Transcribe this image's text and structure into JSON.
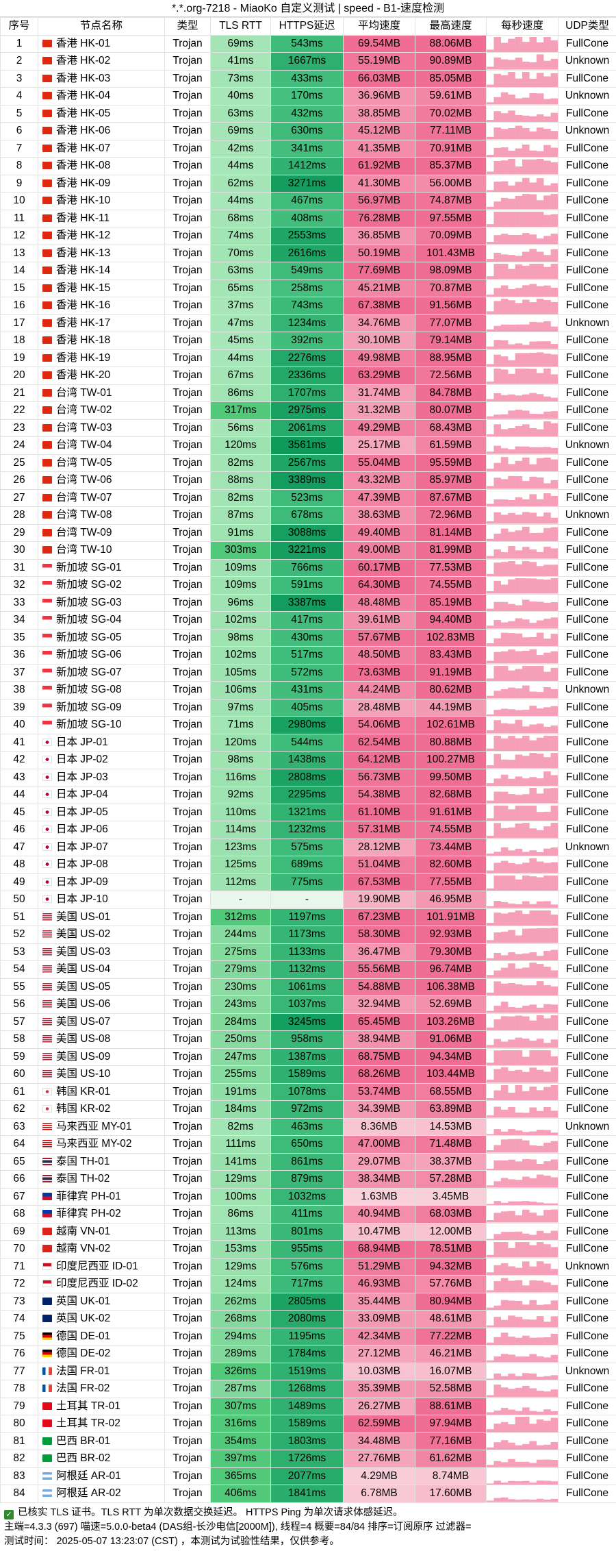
{
  "title": "*.*.org-7218 - MiaoKo 自定义测试 | speed - B1-速度检测",
  "headers": [
    "序号",
    "节点名称",
    "类型",
    "TLS RTT",
    "HTTPS延迟",
    "平均速度",
    "最高速度",
    "每秒速度",
    "UDP类型"
  ],
  "rows": [
    [
      "1",
      "香港 HK-01",
      "Trojan",
      "69ms",
      "543ms",
      "69.54MB",
      "88.06MB",
      "FullCone"
    ],
    [
      "2",
      "香港 HK-02",
      "Trojan",
      "41ms",
      "1667ms",
      "55.19MB",
      "90.89MB",
      "Unknown"
    ],
    [
      "3",
      "香港 HK-03",
      "Trojan",
      "73ms",
      "433ms",
      "66.03MB",
      "85.05MB",
      "FullCone"
    ],
    [
      "4",
      "香港 HK-04",
      "Trojan",
      "40ms",
      "170ms",
      "36.96MB",
      "59.61MB",
      "Unknown"
    ],
    [
      "5",
      "香港 HK-05",
      "Trojan",
      "63ms",
      "432ms",
      "38.85MB",
      "70.02MB",
      "FullCone"
    ],
    [
      "6",
      "香港 HK-06",
      "Trojan",
      "69ms",
      "630ms",
      "45.12MB",
      "77.11MB",
      "Unknown"
    ],
    [
      "7",
      "香港 HK-07",
      "Trojan",
      "42ms",
      "341ms",
      "41.35MB",
      "70.91MB",
      "FullCone"
    ],
    [
      "8",
      "香港 HK-08",
      "Trojan",
      "44ms",
      "1412ms",
      "61.92MB",
      "85.37MB",
      "FullCone"
    ],
    [
      "9",
      "香港 HK-09",
      "Trojan",
      "62ms",
      "3271ms",
      "41.30MB",
      "56.00MB",
      "FullCone"
    ],
    [
      "10",
      "香港 HK-10",
      "Trojan",
      "44ms",
      "467ms",
      "56.97MB",
      "74.87MB",
      "FullCone"
    ],
    [
      "11",
      "香港 HK-11",
      "Trojan",
      "68ms",
      "408ms",
      "76.28MB",
      "97.55MB",
      "FullCone"
    ],
    [
      "12",
      "香港 HK-12",
      "Trojan",
      "74ms",
      "2553ms",
      "36.85MB",
      "70.09MB",
      "FullCone"
    ],
    [
      "13",
      "香港 HK-13",
      "Trojan",
      "70ms",
      "2616ms",
      "50.19MB",
      "101.43MB",
      "FullCone"
    ],
    [
      "14",
      "香港 HK-14",
      "Trojan",
      "63ms",
      "549ms",
      "77.69MB",
      "98.09MB",
      "FullCone"
    ],
    [
      "15",
      "香港 HK-15",
      "Trojan",
      "65ms",
      "258ms",
      "45.21MB",
      "70.87MB",
      "FullCone"
    ],
    [
      "16",
      "香港 HK-16",
      "Trojan",
      "37ms",
      "743ms",
      "67.38MB",
      "91.56MB",
      "FullCone"
    ],
    [
      "17",
      "香港 HK-17",
      "Trojan",
      "47ms",
      "1234ms",
      "34.76MB",
      "77.07MB",
      "Unknown"
    ],
    [
      "18",
      "香港 HK-18",
      "Trojan",
      "45ms",
      "392ms",
      "30.10MB",
      "79.14MB",
      "FullCone"
    ],
    [
      "19",
      "香港 HK-19",
      "Trojan",
      "44ms",
      "2276ms",
      "49.98MB",
      "88.95MB",
      "FullCone"
    ],
    [
      "20",
      "香港 HK-20",
      "Trojan",
      "67ms",
      "2336ms",
      "63.29MB",
      "72.56MB",
      "FullCone"
    ],
    [
      "21",
      "台湾 TW-01",
      "Trojan",
      "86ms",
      "1707ms",
      "31.74MB",
      "84.78MB",
      "FullCone"
    ],
    [
      "22",
      "台湾 TW-02",
      "Trojan",
      "317ms",
      "2975ms",
      "31.32MB",
      "80.07MB",
      "FullCone"
    ],
    [
      "23",
      "台湾 TW-03",
      "Trojan",
      "56ms",
      "2061ms",
      "49.29MB",
      "68.43MB",
      "FullCone"
    ],
    [
      "24",
      "台湾 TW-04",
      "Trojan",
      "120ms",
      "3561ms",
      "25.17MB",
      "61.59MB",
      "Unknown"
    ],
    [
      "25",
      "台湾 TW-05",
      "Trojan",
      "82ms",
      "2567ms",
      "55.04MB",
      "95.59MB",
      "FullCone"
    ],
    [
      "26",
      "台湾 TW-06",
      "Trojan",
      "88ms",
      "3389ms",
      "43.32MB",
      "85.97MB",
      "FullCone"
    ],
    [
      "27",
      "台湾 TW-07",
      "Trojan",
      "82ms",
      "523ms",
      "47.39MB",
      "87.67MB",
      "FullCone"
    ],
    [
      "28",
      "台湾 TW-08",
      "Trojan",
      "87ms",
      "678ms",
      "38.63MB",
      "72.96MB",
      "Unknown"
    ],
    [
      "29",
      "台湾 TW-09",
      "Trojan",
      "91ms",
      "3088ms",
      "49.40MB",
      "81.14MB",
      "FullCone"
    ],
    [
      "30",
      "台湾 TW-10",
      "Trojan",
      "303ms",
      "3221ms",
      "49.00MB",
      "81.99MB",
      "FullCone"
    ],
    [
      "31",
      "新加坡 SG-01",
      "Trojan",
      "109ms",
      "766ms",
      "60.17MB",
      "77.53MB",
      "FullCone"
    ],
    [
      "32",
      "新加坡 SG-02",
      "Trojan",
      "109ms",
      "591ms",
      "64.30MB",
      "74.55MB",
      "FullCone"
    ],
    [
      "33",
      "新加坡 SG-03",
      "Trojan",
      "96ms",
      "3387ms",
      "48.48MB",
      "85.19MB",
      "FullCone"
    ],
    [
      "34",
      "新加坡 SG-04",
      "Trojan",
      "102ms",
      "417ms",
      "39.61MB",
      "94.40MB",
      "FullCone"
    ],
    [
      "35",
      "新加坡 SG-05",
      "Trojan",
      "98ms",
      "430ms",
      "57.67MB",
      "102.83MB",
      "FullCone"
    ],
    [
      "36",
      "新加坡 SG-06",
      "Trojan",
      "102ms",
      "517ms",
      "48.50MB",
      "83.43MB",
      "FullCone"
    ],
    [
      "37",
      "新加坡 SG-07",
      "Trojan",
      "105ms",
      "572ms",
      "73.63MB",
      "91.19MB",
      "FullCone"
    ],
    [
      "38",
      "新加坡 SG-08",
      "Trojan",
      "106ms",
      "431ms",
      "44.24MB",
      "80.62MB",
      "Unknown"
    ],
    [
      "39",
      "新加坡 SG-09",
      "Trojan",
      "97ms",
      "405ms",
      "28.48MB",
      "44.19MB",
      "FullCone"
    ],
    [
      "40",
      "新加坡 SG-10",
      "Trojan",
      "71ms",
      "2980ms",
      "54.06MB",
      "102.61MB",
      "FullCone"
    ],
    [
      "41",
      "日本 JP-01",
      "Trojan",
      "120ms",
      "544ms",
      "62.54MB",
      "80.88MB",
      "FullCone"
    ],
    [
      "42",
      "日本 JP-02",
      "Trojan",
      "98ms",
      "1438ms",
      "64.12MB",
      "100.27MB",
      "FullCone"
    ],
    [
      "43",
      "日本 JP-03",
      "Trojan",
      "116ms",
      "2808ms",
      "56.73MB",
      "99.50MB",
      "FullCone"
    ],
    [
      "44",
      "日本 JP-04",
      "Trojan",
      "92ms",
      "2295ms",
      "54.38MB",
      "82.68MB",
      "FullCone"
    ],
    [
      "45",
      "日本 JP-05",
      "Trojan",
      "110ms",
      "1321ms",
      "61.10MB",
      "91.61MB",
      "FullCone"
    ],
    [
      "46",
      "日本 JP-06",
      "Trojan",
      "114ms",
      "1232ms",
      "57.31MB",
      "74.55MB",
      "FullCone"
    ],
    [
      "47",
      "日本 JP-07",
      "Trojan",
      "123ms",
      "575ms",
      "28.12MB",
      "73.44MB",
      "Unknown"
    ],
    [
      "48",
      "日本 JP-08",
      "Trojan",
      "125ms",
      "689ms",
      "51.04MB",
      "82.60MB",
      "FullCone"
    ],
    [
      "49",
      "日本 JP-09",
      "Trojan",
      "112ms",
      "775ms",
      "67.53MB",
      "77.55MB",
      "FullCone"
    ],
    [
      "50",
      "日本 JP-10",
      "Trojan",
      "-",
      "-",
      "19.90MB",
      "46.95MB",
      "FullCone"
    ],
    [
      "51",
      "美国 US-01",
      "Trojan",
      "312ms",
      "1197ms",
      "67.23MB",
      "101.91MB",
      "FullCone"
    ],
    [
      "52",
      "美国 US-02",
      "Trojan",
      "244ms",
      "1173ms",
      "58.30MB",
      "92.93MB",
      "FullCone"
    ],
    [
      "53",
      "美国 US-03",
      "Trojan",
      "275ms",
      "1133ms",
      "36.47MB",
      "79.30MB",
      "FullCone"
    ],
    [
      "54",
      "美国 US-04",
      "Trojan",
      "279ms",
      "1132ms",
      "55.56MB",
      "96.74MB",
      "FullCone"
    ],
    [
      "55",
      "美国 US-05",
      "Trojan",
      "230ms",
      "1061ms",
      "54.88MB",
      "106.38MB",
      "FullCone"
    ],
    [
      "56",
      "美国 US-06",
      "Trojan",
      "243ms",
      "1037ms",
      "32.94MB",
      "52.69MB",
      "FullCone"
    ],
    [
      "57",
      "美国 US-07",
      "Trojan",
      "284ms",
      "3245ms",
      "65.45MB",
      "103.26MB",
      "FullCone"
    ],
    [
      "58",
      "美国 US-08",
      "Trojan",
      "250ms",
      "958ms",
      "38.94MB",
      "91.06MB",
      "FullCone"
    ],
    [
      "59",
      "美国 US-09",
      "Trojan",
      "247ms",
      "1387ms",
      "68.75MB",
      "94.34MB",
      "FullCone"
    ],
    [
      "60",
      "美国 US-10",
      "Trojan",
      "255ms",
      "1589ms",
      "68.26MB",
      "103.44MB",
      "FullCone"
    ],
    [
      "61",
      "韩国 KR-01",
      "Trojan",
      "191ms",
      "1078ms",
      "53.74MB",
      "68.55MB",
      "FullCone"
    ],
    [
      "62",
      "韩国 KR-02",
      "Trojan",
      "184ms",
      "972ms",
      "34.39MB",
      "63.89MB",
      "FullCone"
    ],
    [
      "63",
      "马来西亚 MY-01",
      "Trojan",
      "82ms",
      "463ms",
      "8.36MB",
      "14.53MB",
      "Unknown"
    ],
    [
      "64",
      "马来西亚 MY-02",
      "Trojan",
      "111ms",
      "650ms",
      "47.00MB",
      "71.48MB",
      "FullCone"
    ],
    [
      "65",
      "泰国 TH-01",
      "Trojan",
      "141ms",
      "861ms",
      "29.07MB",
      "38.37MB",
      "FullCone"
    ],
    [
      "66",
      "泰国 TH-02",
      "Trojan",
      "129ms",
      "879ms",
      "38.34MB",
      "57.28MB",
      "FullCone"
    ],
    [
      "67",
      "菲律宾 PH-01",
      "Trojan",
      "100ms",
      "1032ms",
      "1.63MB",
      "3.45MB",
      "FullCone"
    ],
    [
      "68",
      "菲律宾 PH-02",
      "Trojan",
      "86ms",
      "411ms",
      "40.94MB",
      "68.03MB",
      "FullCone"
    ],
    [
      "69",
      "越南 VN-01",
      "Trojan",
      "113ms",
      "801ms",
      "10.47MB",
      "12.00MB",
      "FullCone"
    ],
    [
      "70",
      "越南 VN-02",
      "Trojan",
      "153ms",
      "955ms",
      "68.94MB",
      "78.51MB",
      "FullCone"
    ],
    [
      "71",
      "印度尼西亚 ID-01",
      "Trojan",
      "129ms",
      "576ms",
      "51.29MB",
      "94.32MB",
      "Unknown"
    ],
    [
      "72",
      "印度尼西亚 ID-02",
      "Trojan",
      "124ms",
      "717ms",
      "46.93MB",
      "57.76MB",
      "FullCone"
    ],
    [
      "73",
      "英国 UK-01",
      "Trojan",
      "262ms",
      "2805ms",
      "35.44MB",
      "80.94MB",
      "FullCone"
    ],
    [
      "74",
      "英国 UK-02",
      "Trojan",
      "268ms",
      "2080ms",
      "33.09MB",
      "48.61MB",
      "FullCone"
    ],
    [
      "75",
      "德国 DE-01",
      "Trojan",
      "294ms",
      "1195ms",
      "42.34MB",
      "77.22MB",
      "FullCone"
    ],
    [
      "76",
      "德国 DE-02",
      "Trojan",
      "289ms",
      "1784ms",
      "27.12MB",
      "46.21MB",
      "FullCone"
    ],
    [
      "77",
      "法国 FR-01",
      "Trojan",
      "326ms",
      "1519ms",
      "10.03MB",
      "16.07MB",
      "Unknown"
    ],
    [
      "78",
      "法国 FR-02",
      "Trojan",
      "287ms",
      "1268ms",
      "35.39MB",
      "52.58MB",
      "FullCone"
    ],
    [
      "79",
      "土耳其 TR-01",
      "Trojan",
      "307ms",
      "1489ms",
      "26.27MB",
      "88.61MB",
      "FullCone"
    ],
    [
      "80",
      "土耳其 TR-02",
      "Trojan",
      "316ms",
      "1589ms",
      "62.59MB",
      "97.94MB",
      "FullCone"
    ],
    [
      "81",
      "巴西 BR-01",
      "Trojan",
      "354ms",
      "1803ms",
      "34.48MB",
      "77.16MB",
      "FullCone"
    ],
    [
      "82",
      "巴西 BR-02",
      "Trojan",
      "397ms",
      "1726ms",
      "27.76MB",
      "61.62MB",
      "FullCone"
    ],
    [
      "83",
      "阿根廷 AR-01",
      "Trojan",
      "365ms",
      "2077ms",
      "4.29MB",
      "8.74MB",
      "FullCone"
    ],
    [
      "84",
      "阿根廷 AR-02",
      "Trojan",
      "406ms",
      "1841ms",
      "6.78MB",
      "17.60MB",
      "FullCone"
    ]
  ],
  "footer": {
    "line1": "已核实 TLS 证书。TLS RTT 为单次数据交换延迟。 HTTPS Ping 为单次请求体感延迟。",
    "line2": "主端=4.3.3 (697) 喵速=5.0.0-beta4 (DAS组-长沙电信[2000M]), 线程=4 概要=84/84 排序=订阅原序 过滤器=",
    "line3": "测试时间： 2025-05-07 13:23:07 (CST) ，本测试为试验性结果，仅供参考。"
  },
  "colors": {
    "rtt_fast": "#a8e6b8",
    "rtt_slow": "#52c87a",
    "https_fast": "#46c07e",
    "https_slow": "#0f9a5c",
    "speed_low": "#f9d3dd",
    "speed_high": "#f06e93",
    "spark": "#f5a0b8"
  }
}
